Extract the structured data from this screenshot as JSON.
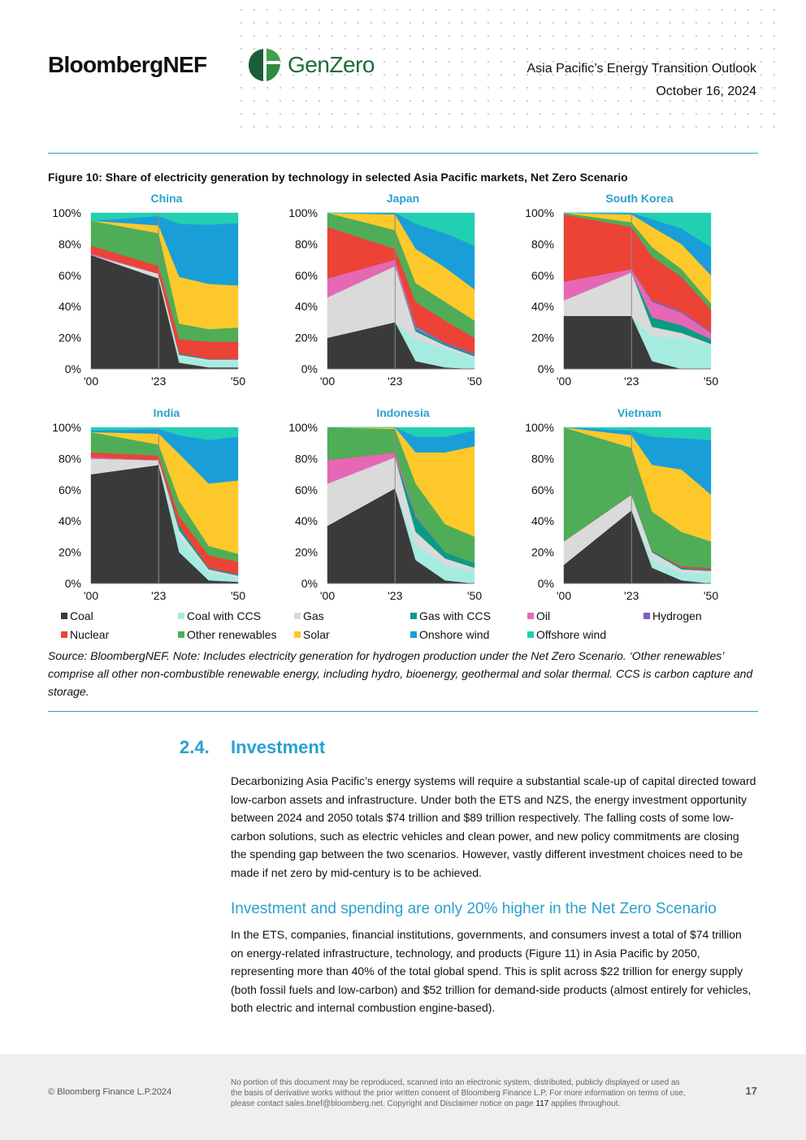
{
  "header": {
    "brand": "BloombergNEF",
    "partner": "GenZero",
    "report_title": "Asia Pacific’s Energy Transition Outlook",
    "date": "October 16, 2024"
  },
  "figure": {
    "title": "Figure 10: Share of electricity generation by technology in selected Asia Pacific markets, Net Zero Scenario"
  },
  "colors": {
    "accent": "#2aa0cf",
    "coal": "#3a3a3a",
    "coal_ccs": "#a6ebe0",
    "gas": "#dadada",
    "gas_ccs": "#0a9b86",
    "oil": "#e668b4",
    "hydrogen": "#7f5fb6",
    "nuclear": "#ec4336",
    "other_renewables": "#4fad57",
    "solar": "#fdc92a",
    "onshore_wind": "#1a9ed8",
    "offshore_wind": "#21cfb1"
  },
  "chart_data": [
    {
      "type": "area",
      "stacked": true,
      "title": "China",
      "x": [
        2000,
        2023,
        2030,
        2040,
        2050
      ],
      "ylim": [
        0,
        100
      ],
      "x_tick_labels": [
        "'00",
        "'23",
        "'50"
      ],
      "y_tick_labels": [
        "100%",
        "80%",
        "60%",
        "40%",
        "20%",
        "0%"
      ],
      "series": [
        {
          "name": "Coal",
          "values": [
            73,
            58,
            4,
            1,
            1
          ]
        },
        {
          "name": "Coal with CCS",
          "values": [
            0,
            0,
            4,
            4,
            4
          ]
        },
        {
          "name": "Gas",
          "values": [
            0,
            3,
            1,
            1,
            1
          ]
        },
        {
          "name": "Gas with CCS",
          "values": [
            0,
            0,
            1,
            0.5,
            0.5
          ]
        },
        {
          "name": "Oil",
          "values": [
            1,
            0,
            0,
            0,
            0
          ]
        },
        {
          "name": "Hydrogen",
          "values": [
            0,
            0,
            0,
            0,
            0
          ]
        },
        {
          "name": "Nuclear",
          "values": [
            5,
            5,
            9,
            11,
            11
          ]
        },
        {
          "name": "Other renewables",
          "values": [
            16,
            21,
            10,
            8,
            9
          ]
        },
        {
          "name": "Solar",
          "values": [
            0,
            5,
            30,
            29,
            27
          ]
        },
        {
          "name": "Onshore wind",
          "values": [
            0,
            6,
            34,
            38,
            40
          ]
        },
        {
          "name": "Offshore wind",
          "values": [
            5,
            2,
            7,
            7.5,
            6.5
          ]
        }
      ]
    },
    {
      "type": "area",
      "stacked": true,
      "title": "Japan",
      "x": [
        2000,
        2023,
        2030,
        2040,
        2050
      ],
      "ylim": [
        0,
        100
      ],
      "x_tick_labels": [
        "'00",
        "'23",
        "'50"
      ],
      "y_tick_labels": [
        "100%",
        "80%",
        "60%",
        "40%",
        "20%",
        "0%"
      ],
      "series": [
        {
          "name": "Coal",
          "values": [
            20,
            30,
            5,
            1,
            0
          ]
        },
        {
          "name": "Coal with CCS",
          "values": [
            0,
            0,
            14,
            12,
            7
          ]
        },
        {
          "name": "Gas",
          "values": [
            26,
            36,
            5,
            2,
            1
          ]
        },
        {
          "name": "Gas with CCS",
          "values": [
            0,
            0,
            2,
            1,
            1
          ]
        },
        {
          "name": "Oil",
          "values": [
            12,
            4,
            1,
            0,
            0
          ]
        },
        {
          "name": "Hydrogen",
          "values": [
            0,
            0,
            1,
            1,
            1
          ]
        },
        {
          "name": "Nuclear",
          "values": [
            33,
            7,
            15,
            14,
            10
          ]
        },
        {
          "name": "Other renewables",
          "values": [
            9,
            12,
            12,
            12,
            11
          ]
        },
        {
          "name": "Solar",
          "values": [
            0,
            10,
            22,
            22,
            20
          ]
        },
        {
          "name": "Onshore wind",
          "values": [
            0,
            1,
            16,
            22,
            28
          ]
        },
        {
          "name": "Offshore wind",
          "values": [
            0,
            0,
            7,
            13,
            21
          ]
        }
      ]
    },
    {
      "type": "area",
      "stacked": true,
      "title": "South Korea",
      "x": [
        2000,
        2023,
        2030,
        2040,
        2050
      ],
      "ylim": [
        0,
        100
      ],
      "x_tick_labels": [
        "'00",
        "'23",
        "'50"
      ],
      "y_tick_labels": [
        "100%",
        "80%",
        "60%",
        "40%",
        "20%",
        "0%"
      ],
      "series": [
        {
          "name": "Coal",
          "values": [
            34,
            34,
            5,
            0,
            0
          ]
        },
        {
          "name": "Coal with CCS",
          "values": [
            0,
            0,
            16,
            20,
            15
          ]
        },
        {
          "name": "Gas",
          "values": [
            10,
            28,
            6,
            3,
            1
          ]
        },
        {
          "name": "Gas with CCS",
          "values": [
            0,
            0,
            6,
            5,
            3
          ]
        },
        {
          "name": "Oil",
          "values": [
            12,
            2,
            10,
            8,
            4
          ]
        },
        {
          "name": "Hydrogen",
          "values": [
            0,
            0,
            1,
            1,
            1
          ]
        },
        {
          "name": "Nuclear",
          "values": [
            43,
            27,
            28,
            22,
            14
          ]
        },
        {
          "name": "Other renewables",
          "values": [
            1,
            3,
            6,
            5,
            4
          ]
        },
        {
          "name": "Solar",
          "values": [
            0,
            5,
            13,
            16,
            18
          ]
        },
        {
          "name": "Onshore wind",
          "values": [
            0,
            1,
            5,
            10,
            18
          ]
        },
        {
          "name": "Offshore wind",
          "values": [
            0,
            0,
            4,
            10,
            22
          ]
        }
      ]
    },
    {
      "type": "area",
      "stacked": true,
      "title": "India",
      "x": [
        2000,
        2023,
        2030,
        2040,
        2050
      ],
      "ylim": [
        0,
        100
      ],
      "x_tick_labels": [
        "'00",
        "'23",
        "'50"
      ],
      "y_tick_labels": [
        "100%",
        "80%",
        "60%",
        "40%",
        "20%",
        "0%"
      ],
      "series": [
        {
          "name": "Coal",
          "values": [
            70,
            76,
            20,
            2,
            1
          ]
        },
        {
          "name": "Coal with CCS",
          "values": [
            0,
            0,
            10,
            5,
            3
          ]
        },
        {
          "name": "Gas",
          "values": [
            10,
            3,
            4,
            2,
            1
          ]
        },
        {
          "name": "Gas with CCS",
          "values": [
            0,
            0,
            3,
            1,
            1
          ]
        },
        {
          "name": "Oil",
          "values": [
            1,
            0,
            0,
            0,
            0
          ]
        },
        {
          "name": "Hydrogen",
          "values": [
            0,
            0,
            0,
            0,
            0
          ]
        },
        {
          "name": "Nuclear",
          "values": [
            3,
            3,
            6,
            8,
            8
          ]
        },
        {
          "name": "Other renewables",
          "values": [
            13,
            7,
            10,
            6,
            5
          ]
        },
        {
          "name": "Solar",
          "values": [
            0,
            7,
            30,
            40,
            47
          ]
        },
        {
          "name": "Onshore wind",
          "values": [
            1,
            3,
            12,
            28,
            28
          ]
        },
        {
          "name": "Offshore wind",
          "values": [
            2,
            1,
            5,
            8,
            6
          ]
        }
      ]
    },
    {
      "type": "area",
      "stacked": true,
      "title": "Indonesia",
      "x": [
        2000,
        2023,
        2030,
        2040,
        2050
      ],
      "ylim": [
        0,
        100
      ],
      "x_tick_labels": [
        "'00",
        "'23",
        "'50"
      ],
      "y_tick_labels": [
        "100%",
        "80%",
        "60%",
        "40%",
        "20%",
        "0%"
      ],
      "series": [
        {
          "name": "Coal",
          "values": [
            37,
            61,
            15,
            2,
            0
          ]
        },
        {
          "name": "Coal with CCS",
          "values": [
            0,
            0,
            10,
            10,
            8
          ]
        },
        {
          "name": "Gas",
          "values": [
            27,
            20,
            8,
            4,
            2
          ]
        },
        {
          "name": "Gas with CCS",
          "values": [
            0,
            0,
            10,
            4,
            3
          ]
        },
        {
          "name": "Oil",
          "values": [
            15,
            3,
            1,
            0,
            0
          ]
        },
        {
          "name": "Hydrogen",
          "values": [
            0,
            0,
            0,
            0,
            0
          ]
        },
        {
          "name": "Nuclear",
          "values": [
            0,
            0,
            0,
            0,
            0
          ]
        },
        {
          "name": "Other renewables",
          "values": [
            21,
            15,
            20,
            18,
            17
          ]
        },
        {
          "name": "Solar",
          "values": [
            0,
            1,
            20,
            46,
            58
          ]
        },
        {
          "name": "Onshore wind",
          "values": [
            0,
            0,
            10,
            10,
            10
          ]
        },
        {
          "name": "Offshore wind",
          "values": [
            0,
            0,
            6,
            6,
            2
          ]
        }
      ]
    },
    {
      "type": "area",
      "stacked": true,
      "title": "Vietnam",
      "x": [
        2000,
        2023,
        2030,
        2040,
        2050
      ],
      "ylim": [
        0,
        100
      ],
      "x_tick_labels": [
        "'00",
        "'23",
        "'50"
      ],
      "y_tick_labels": [
        "100%",
        "80%",
        "60%",
        "40%",
        "20%",
        "0%"
      ],
      "series": [
        {
          "name": "Coal",
          "values": [
            12,
            47,
            10,
            2,
            0
          ]
        },
        {
          "name": "Coal with CCS",
          "values": [
            0,
            0,
            5,
            5,
            6
          ]
        },
        {
          "name": "Gas",
          "values": [
            15,
            10,
            5,
            2,
            2
          ]
        },
        {
          "name": "Gas with CCS",
          "values": [
            0,
            0,
            1,
            1,
            1
          ]
        },
        {
          "name": "Oil",
          "values": [
            0,
            0,
            0,
            0,
            0
          ]
        },
        {
          "name": "Hydrogen",
          "values": [
            0,
            0,
            0,
            0,
            0
          ]
        },
        {
          "name": "Nuclear",
          "values": [
            0,
            0,
            0,
            1,
            1
          ]
        },
        {
          "name": "Other renewables",
          "values": [
            73,
            30,
            25,
            22,
            17
          ]
        },
        {
          "name": "Solar",
          "values": [
            0,
            8,
            30,
            40,
            30
          ]
        },
        {
          "name": "Onshore wind",
          "values": [
            0,
            3,
            18,
            20,
            35
          ]
        },
        {
          "name": "Offshore wind",
          "values": [
            0,
            2,
            6,
            7,
            8
          ]
        }
      ]
    }
  ],
  "legend": {
    "items": [
      {
        "name": "Coal",
        "key": "coal"
      },
      {
        "name": "Coal with CCS",
        "key": "coal_ccs"
      },
      {
        "name": "Gas",
        "key": "gas"
      },
      {
        "name": "Gas with CCS",
        "key": "gas_ccs"
      },
      {
        "name": "Oil",
        "key": "oil"
      },
      {
        "name": "Hydrogen",
        "key": "hydrogen"
      },
      {
        "name": "Nuclear",
        "key": "nuclear"
      },
      {
        "name": "Other renewables",
        "key": "other_renewables"
      },
      {
        "name": "Solar",
        "key": "solar"
      },
      {
        "name": "Onshore wind",
        "key": "onshore_wind"
      },
      {
        "name": "Offshore wind",
        "key": "offshore_wind"
      }
    ]
  },
  "source_note": "Source: BloombergNEF. Note: Includes electricity generation for hydrogen production under the Net Zero Scenario. ‘Other renewables’ comprise all other non-combustible renewable energy, including hydro, bioenergy, geothermal and solar thermal. CCS is carbon capture and storage.",
  "section": {
    "number": "2.4.",
    "title": "Investment",
    "paragraph1": "Decarbonizing Asia Pacific’s energy systems will require a substantial scale-up of capital directed toward low-carbon assets and infrastructure. Under both the ETS and NZS, the energy investment opportunity between 2024 and 2050 totals $74 trillion and $89 trillion respectively. The falling costs of some low-carbon solutions, such as electric vehicles and clean power, and new policy commitments are closing the spending gap between the two scenarios. However, vastly different investment choices need to be made if net zero by mid-century is to be achieved.",
    "subheading": "Investment and spending are only 20% higher in the Net Zero Scenario",
    "paragraph2": "In the ETS, companies, financial institutions, governments, and consumers invest a total of $74 trillion on energy-related infrastructure, technology, and products (Figure 11) in Asia Pacific by 2050, representing more than 40% of the total global spend. This is split across $22 trillion for energy supply (both fossil fuels and low-carbon) and $52 trillion for demand-side products (almost entirely for vehicles, both electric and internal combustion engine-based)."
  },
  "footer": {
    "copyright": "© Bloomberg Finance L.P.2024",
    "notice_before": "No portion of this document may be reproduced, scanned into an electronic system, distributed, publicly displayed or used as the basis of derivative works without the prior written consent of Bloomberg Finance L.P.  For more information on terms of use, please contact sales.bnef@bloomberg.net. Copyright and Disclaimer notice on page ",
    "notice_page": "117",
    "notice_after": " applies throughout.",
    "page_number": "17"
  }
}
